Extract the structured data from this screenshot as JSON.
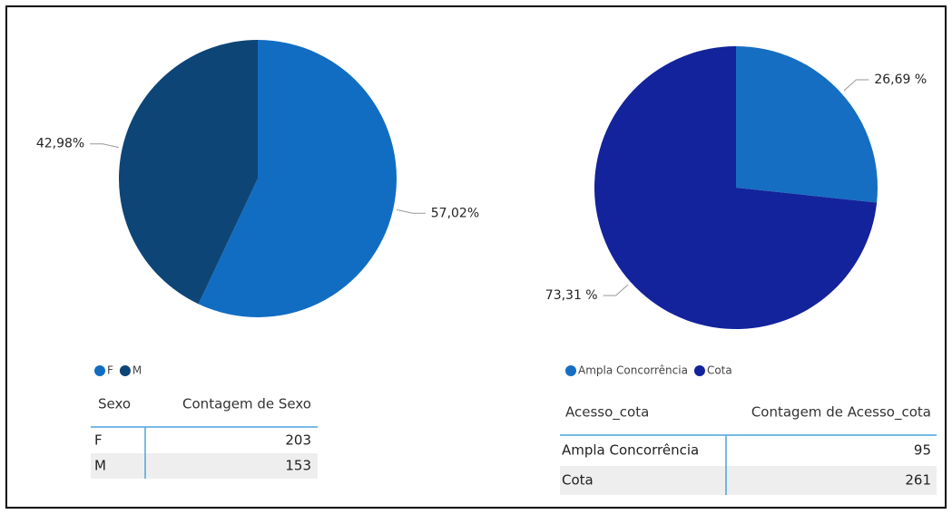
{
  "chart_data": [
    {
      "type": "pie",
      "categories": [
        "F",
        "M"
      ],
      "values": [
        57.02,
        42.98
      ],
      "value_labels": [
        "57,02%",
        "42,98%"
      ],
      "colors": [
        "#116dc2",
        "#0d4577"
      ]
    },
    {
      "type": "pie",
      "categories": [
        "Ampla Concorrência",
        "Cota"
      ],
      "values": [
        26.69,
        73.31
      ],
      "value_labels": [
        "26,69 %",
        "73,31 %"
      ],
      "colors": [
        "#166ec2",
        "#13239b"
      ]
    }
  ],
  "tables": [
    {
      "columns": [
        "Sexo",
        "Contagem de Sexo"
      ],
      "rows": [
        [
          "F",
          203
        ],
        [
          "M",
          153
        ]
      ]
    },
    {
      "columns": [
        "Acesso_cota",
        "Contagem de Acesso_cota"
      ],
      "rows": [
        [
          "Ampla Concorrência",
          95
        ],
        [
          "Cota",
          261
        ]
      ]
    }
  ]
}
